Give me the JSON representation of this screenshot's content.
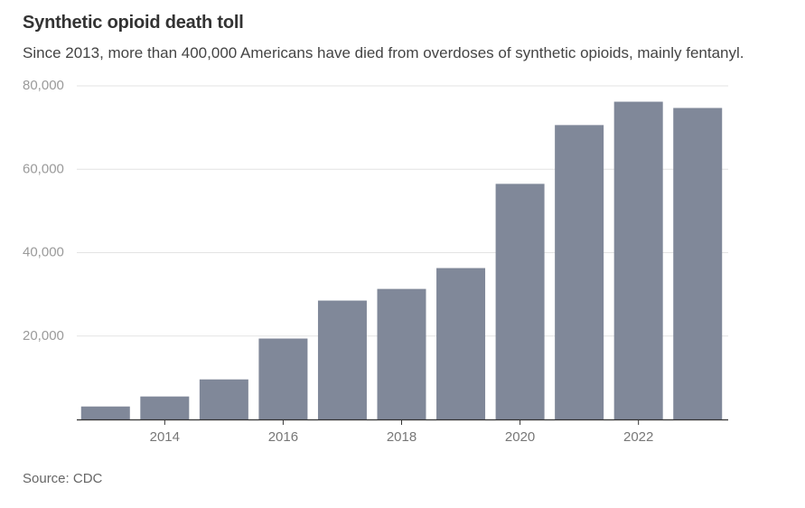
{
  "header": {
    "title": "Synthetic opioid death toll",
    "subtitle": "Since 2013, more than 400,000 Americans have died from overdoses of synthetic opioids, mainly fentanyl."
  },
  "footer": {
    "source": "Source: CDC"
  },
  "chart_data": {
    "type": "bar",
    "title": "Synthetic opioid death toll",
    "subtitle": "Since 2013, more than 400,000 Americans have died from overdoses of synthetic opioids, mainly fentanyl.",
    "xlabel": "",
    "ylabel": "",
    "categories": [
      "2013",
      "2014",
      "2015",
      "2016",
      "2017",
      "2018",
      "2019",
      "2020",
      "2021",
      "2022",
      "2023"
    ],
    "values": [
      3100,
      5500,
      9600,
      19400,
      28500,
      31300,
      36300,
      56500,
      70600,
      76200,
      74700
    ],
    "x_tick_labels": [
      "2014",
      "2016",
      "2018",
      "2020",
      "2022"
    ],
    "y_ticks": [
      20000,
      40000,
      60000,
      80000
    ],
    "y_tick_labels": [
      "20,000",
      "40,000",
      "60,000",
      "80,000"
    ],
    "ylim": [
      0,
      80000
    ],
    "grid": true,
    "legend": "none",
    "bar_color": "#808899",
    "grid_color": "#e3e3e3",
    "axis_color": "#333333"
  }
}
